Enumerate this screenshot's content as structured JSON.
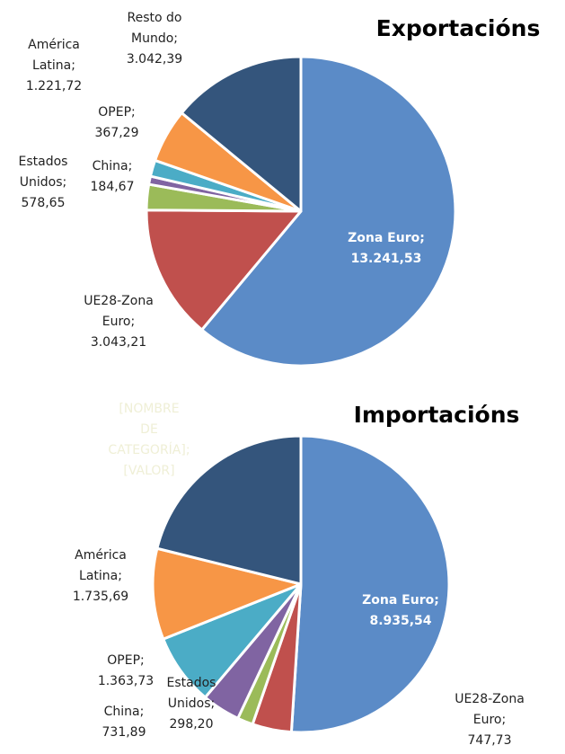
{
  "chart_data": [
    {
      "type": "pie",
      "title": "Exportacións",
      "categories": [
        "Zona Euro",
        "UE28-Zona Euro",
        "Estados Unidos",
        "China",
        "OPEP",
        "América Latina",
        "Resto do Mundo"
      ],
      "values": [
        13241.53,
        3043.21,
        578.65,
        184.67,
        367.29,
        1221.72,
        3042.39
      ],
      "value_labels": [
        "13.241,53",
        "3.043,21",
        "578,65",
        "184,67",
        "367,29",
        "1.221,72",
        "3.042,39"
      ],
      "label_separator": ";",
      "colors": [
        "#5b8bc7",
        "#c0504d",
        "#9bbb59",
        "#8064a2",
        "#4bacc6",
        "#f79646",
        "#34557c"
      ]
    },
    {
      "type": "pie",
      "title": "Importacións",
      "categories": [
        "Zona Euro",
        "UE28-Zona Euro",
        "Estados Unidos",
        "China",
        "OPEP",
        "América Latina",
        null
      ],
      "values": [
        8935.54,
        747.73,
        298.2,
        731.89,
        1363.73,
        1735.69,
        3700
      ],
      "value_labels": [
        "8.935,54",
        "747,73",
        "298,20",
        "731,89",
        "1.363,73",
        "1.735,69",
        null
      ],
      "label_separator": ";",
      "annotation": "[NOMBRE DE CATEGORÍA]; [VALOR]",
      "colors": [
        "#5b8bc7",
        "#c0504d",
        "#9bbb59",
        "#8064a2",
        "#4bacc6",
        "#f79646",
        "#34557c"
      ]
    }
  ]
}
